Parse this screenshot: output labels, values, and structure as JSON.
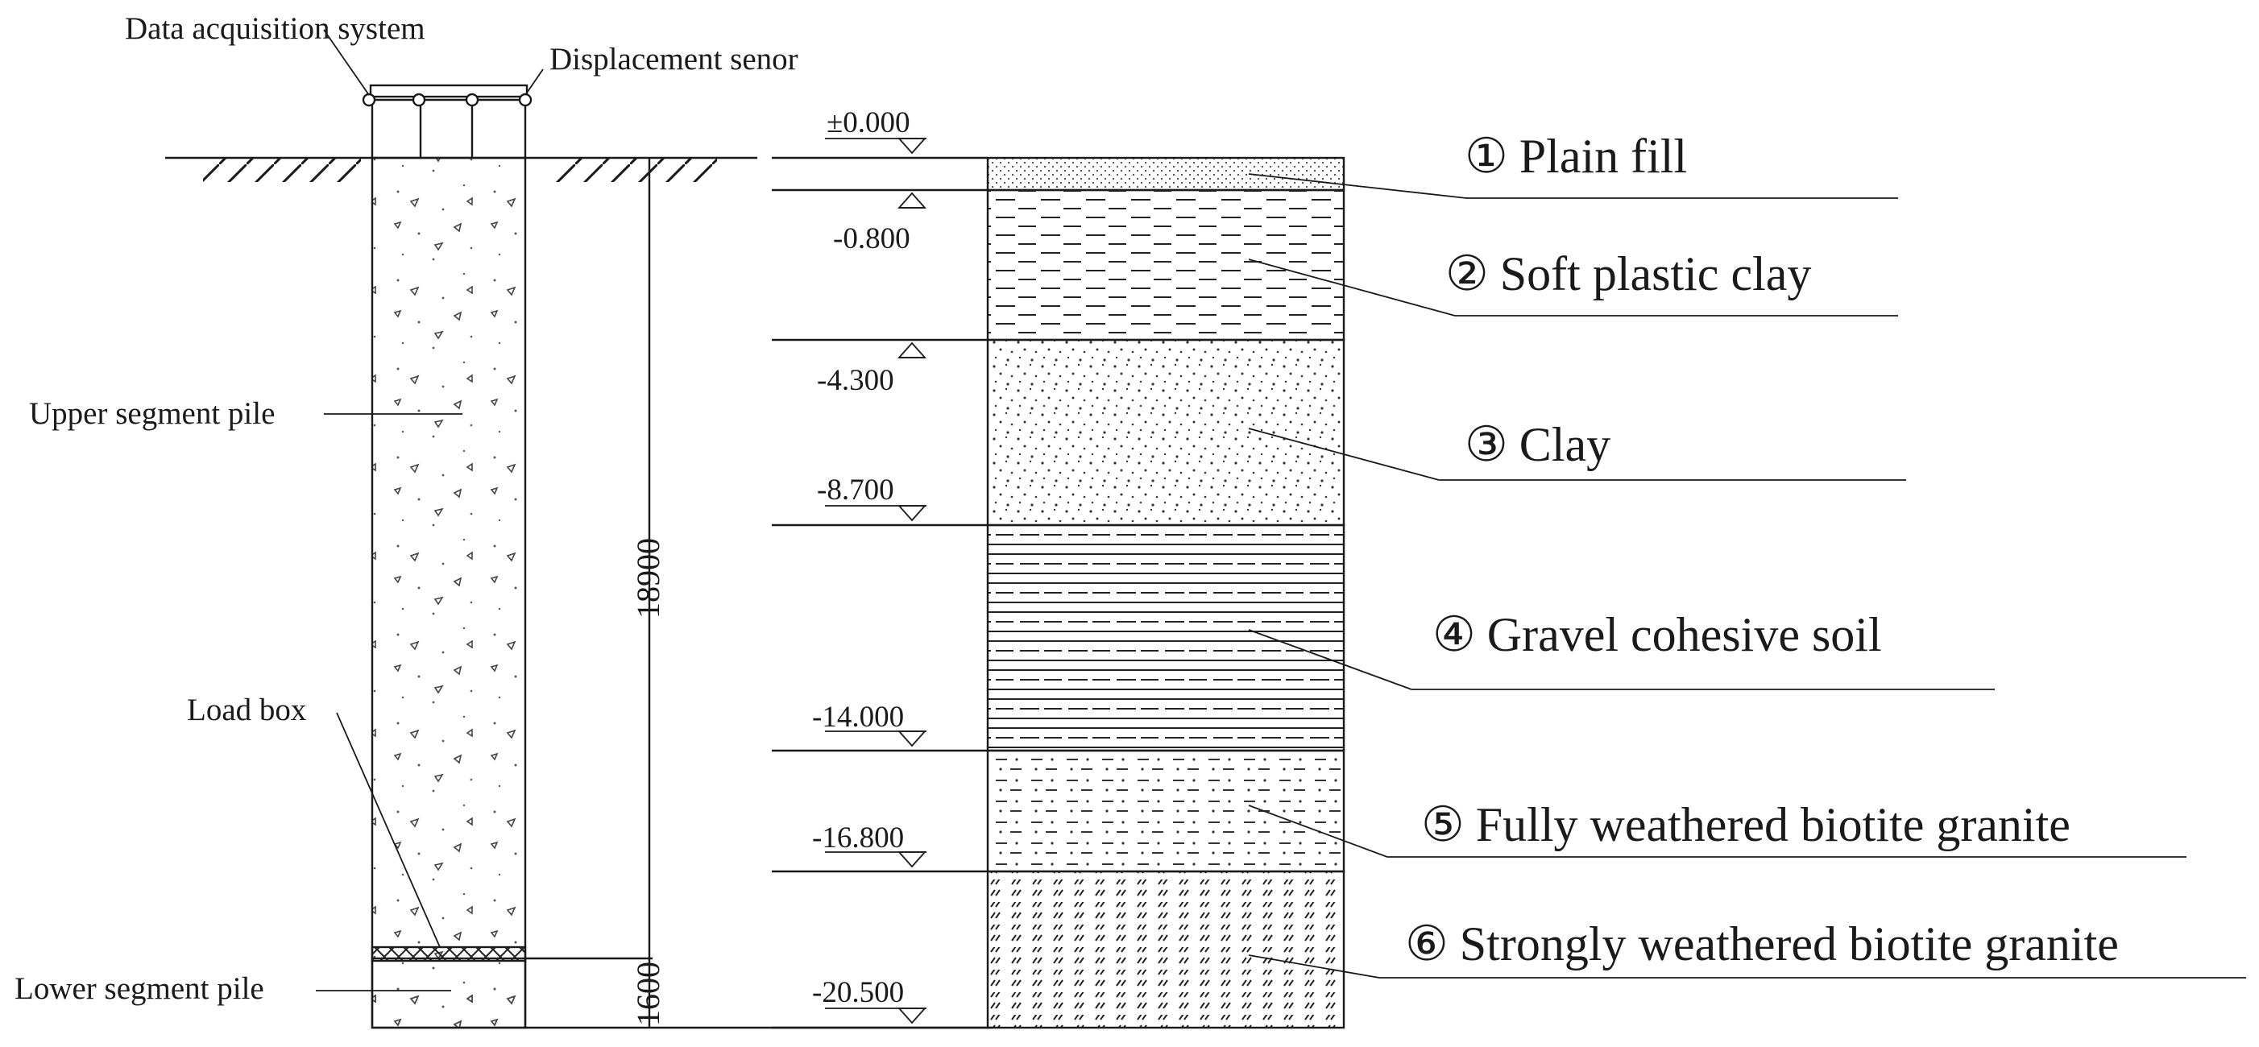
{
  "pile": {
    "data_acquisition_label": "Data acquisition system",
    "displacement_sensor_label": "Displacement senor",
    "upper_segment_label": "Upper segment pile",
    "load_box_label": "Load box",
    "lower_segment_label": "Lower segment pile",
    "dimension_upper": "18900",
    "dimension_lower": "1600"
  },
  "elevations": [
    {
      "label": "±0.000",
      "mark": "down"
    },
    {
      "label": "-0.800",
      "mark": "up"
    },
    {
      "label": "-4.300",
      "mark": "up"
    },
    {
      "label": "-8.700",
      "mark": "down"
    },
    {
      "label": "-14.000",
      "mark": "down"
    },
    {
      "label": "-16.800",
      "mark": "down"
    },
    {
      "label": "-20.500",
      "mark": "down"
    }
  ],
  "layers": [
    {
      "number": "①",
      "name": "Plain fill",
      "hatch": "dots-fine"
    },
    {
      "number": "②",
      "name": "Soft plastic clay",
      "hatch": "dashes"
    },
    {
      "number": "③",
      "name": "Clay",
      "hatch": "dots"
    },
    {
      "number": "④",
      "name": "Gravel cohesive soil",
      "hatch": "lines-dashes"
    },
    {
      "number": "⑤",
      "name": "Fully weathered biotite granite",
      "hatch": "dash-dot"
    },
    {
      "number": "⑥",
      "name": "Strongly weathered biotite granite",
      "hatch": "slashes"
    }
  ],
  "colors": {
    "ink": "#1a1a1a",
    "background": "#ffffff"
  }
}
